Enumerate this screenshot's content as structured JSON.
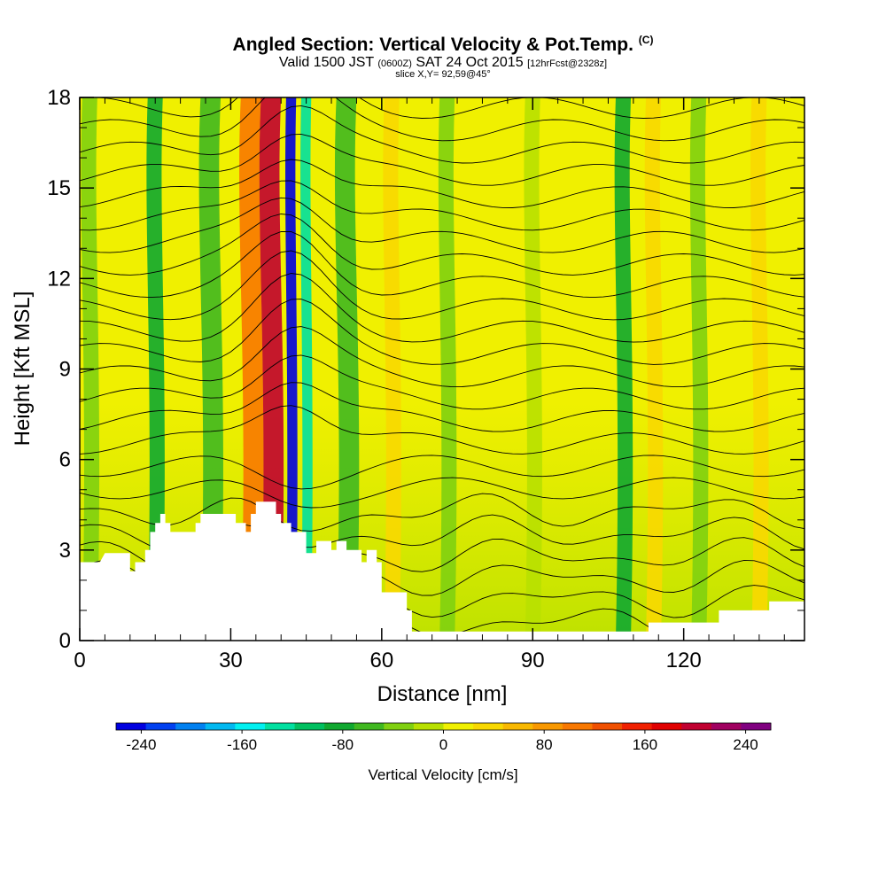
{
  "title": {
    "main": "Angled Section: Vertical Velocity & Pot.Temp.",
    "copyright": "(C)",
    "valid_prefix": "Valid 1500 JST",
    "valid_utc": "(0600Z)",
    "valid_date": "SAT 24 Oct 2015",
    "forecast": "[12hrFcst@2328z]",
    "slice": "slice X,Y= 92,59@45°"
  },
  "chart_data": {
    "type": "heatmap",
    "xlabel": "Distance [nm]",
    "ylabel": "Height [Kft MSL]",
    "xlim": [
      0,
      144
    ],
    "ylim": [
      0,
      18
    ],
    "x_ticks": [
      0,
      30,
      60,
      90,
      120
    ],
    "y_ticks": [
      0,
      3,
      6,
      9,
      12,
      15,
      18
    ],
    "colorbar": {
      "label": "Vertical Velocity [cm/s]",
      "range": [
        -260,
        260
      ],
      "tick_values": [
        -240,
        -160,
        -80,
        0,
        80,
        160,
        240
      ],
      "tick_labels": [
        "-240",
        "-160",
        "-80",
        "0",
        "80",
        "160",
        "240"
      ],
      "colors": [
        "#0000e0",
        "#0040f0",
        "#0080f0",
        "#00b8f0",
        "#00f0f0",
        "#00e0a0",
        "#00c060",
        "#10a830",
        "#40b820",
        "#80d010",
        "#b8e000",
        "#f0f000",
        "#f8d800",
        "#f8b800",
        "#f89800",
        "#f87800",
        "#f05000",
        "#f02000",
        "#e00000",
        "#c00030",
        "#a00060",
        "#800080"
      ]
    },
    "terrain": [
      [
        0,
        2.6
      ],
      [
        4,
        2.6
      ],
      [
        5,
        2.9
      ],
      [
        10,
        2.9
      ],
      [
        10,
        2.3
      ],
      [
        11,
        2.3
      ],
      [
        11,
        2.6
      ],
      [
        13,
        2.6
      ],
      [
        13,
        3.0
      ],
      [
        14,
        3.0
      ],
      [
        14,
        3.6
      ],
      [
        15,
        3.6
      ],
      [
        15,
        3.9
      ],
      [
        16,
        3.9
      ],
      [
        16,
        4.2
      ],
      [
        17,
        4.2
      ],
      [
        17,
        3.9
      ],
      [
        18,
        3.9
      ],
      [
        18,
        3.6
      ],
      [
        23,
        3.6
      ],
      [
        23,
        3.9
      ],
      [
        24,
        3.9
      ],
      [
        24,
        4.2
      ],
      [
        31,
        4.2
      ],
      [
        31,
        3.9
      ],
      [
        33,
        3.9
      ],
      [
        33,
        3.6
      ],
      [
        34,
        3.6
      ],
      [
        34,
        4.2
      ],
      [
        35,
        4.2
      ],
      [
        35,
        4.6
      ],
      [
        39,
        4.6
      ],
      [
        39,
        4.2
      ],
      [
        40,
        4.2
      ],
      [
        40,
        3.9
      ],
      [
        42,
        3.9
      ],
      [
        42,
        3.6
      ],
      [
        45,
        3.6
      ],
      [
        45,
        2.9
      ],
      [
        47,
        2.9
      ],
      [
        47,
        3.3
      ],
      [
        50,
        3.3
      ],
      [
        50,
        3.0
      ],
      [
        51,
        3.0
      ],
      [
        51,
        3.3
      ],
      [
        53,
        3.3
      ],
      [
        53,
        3.0
      ],
      [
        56,
        3.0
      ],
      [
        56,
        2.6
      ],
      [
        57,
        2.6
      ],
      [
        57,
        3.0
      ],
      [
        59,
        3.0
      ],
      [
        59,
        2.6
      ],
      [
        60,
        2.6
      ],
      [
        60,
        1.6
      ],
      [
        65,
        1.6
      ],
      [
        65,
        1.0
      ],
      [
        66,
        1.0
      ],
      [
        66,
        0.3
      ],
      [
        113,
        0.3
      ],
      [
        113,
        0.6
      ],
      [
        127,
        0.6
      ],
      [
        127,
        1.0
      ],
      [
        137,
        1.0
      ],
      [
        137,
        1.3
      ],
      [
        144,
        1.3
      ]
    ],
    "bands": [
      {
        "x": 2,
        "width": 3,
        "value": -40
      },
      {
        "x": 15,
        "width": 3,
        "value": -80
      },
      {
        "x": 26,
        "width": 4,
        "value": -60
      },
      {
        "x": 34,
        "width": 4,
        "value": 100
      },
      {
        "x": 38,
        "width": 4,
        "value": 200
      },
      {
        "x": 42,
        "width": 2,
        "value": -250
      },
      {
        "x": 45,
        "width": 2,
        "value": -130
      },
      {
        "x": 53,
        "width": 4,
        "value": -60
      },
      {
        "x": 62,
        "width": 3,
        "value": 40
      },
      {
        "x": 73,
        "width": 3,
        "value": -30
      },
      {
        "x": 90,
        "width": 3,
        "value": -20
      },
      {
        "x": 108,
        "width": 3,
        "value": -80
      },
      {
        "x": 114,
        "width": 3,
        "value": 30
      },
      {
        "x": 123,
        "width": 3,
        "value": -30
      },
      {
        "x": 135,
        "width": 3,
        "value": 30
      }
    ],
    "contour_levels_count": 24
  }
}
